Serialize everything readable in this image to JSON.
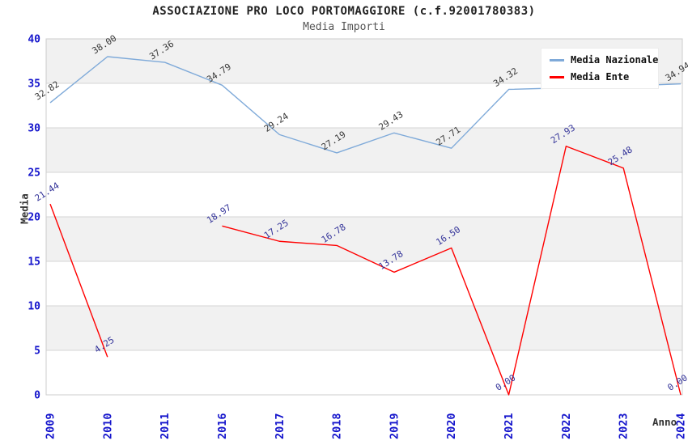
{
  "title": "ASSOCIAZIONE PRO LOCO PORTOMAGGIORE (c.f.92001780383)",
  "subtitle": "Media Importi",
  "axes": {
    "y_title": "Media",
    "x_title": "Anno",
    "y_ticks": [
      0,
      5,
      10,
      15,
      20,
      25,
      30,
      35,
      40
    ],
    "tick_label_color": "#1515cc"
  },
  "legend": {
    "items": [
      {
        "label": "Media Nazionale",
        "color": "#7faad9"
      },
      {
        "label": "Media Ente",
        "color": "#ff0000"
      }
    ]
  },
  "chart_data": {
    "type": "line",
    "title": "ASSOCIAZIONE PRO LOCO PORTOMAGGIORE (c.f.92001780383)",
    "subtitle": "Media Importi",
    "xlabel": "Anno",
    "ylabel": "Media",
    "ylim": [
      0,
      40
    ],
    "grid": true,
    "legend_position": "top-right-inside",
    "band_colors": [
      "#ffffff",
      "#f1f1f1"
    ],
    "grid_color": "#d4d4d4",
    "border_color": "#cccccc",
    "categories": [
      "2009",
      "2010",
      "2011",
      "2016",
      "2017",
      "2018",
      "2019",
      "2020",
      "2021",
      "2022",
      "2023",
      "2024"
    ],
    "series": [
      {
        "name": "Media Nazionale",
        "color": "#7faad9",
        "label_color": "#383838",
        "values": [
          32.82,
          38.0,
          37.36,
          34.79,
          29.24,
          27.19,
          29.43,
          27.71,
          34.32,
          34.5,
          34.7,
          34.94
        ],
        "labels_visible": [
          1,
          1,
          1,
          1,
          1,
          1,
          1,
          1,
          1,
          0,
          0,
          1
        ]
      },
      {
        "name": "Media Ente",
        "color": "#ff0000",
        "label_color": "#333399",
        "values": [
          21.44,
          4.25,
          null,
          18.97,
          17.25,
          16.78,
          13.78,
          16.5,
          0.0,
          27.93,
          25.48,
          0.0
        ],
        "labels_visible": [
          1,
          1,
          0,
          1,
          1,
          1,
          1,
          1,
          1,
          1,
          1,
          1
        ]
      }
    ]
  }
}
